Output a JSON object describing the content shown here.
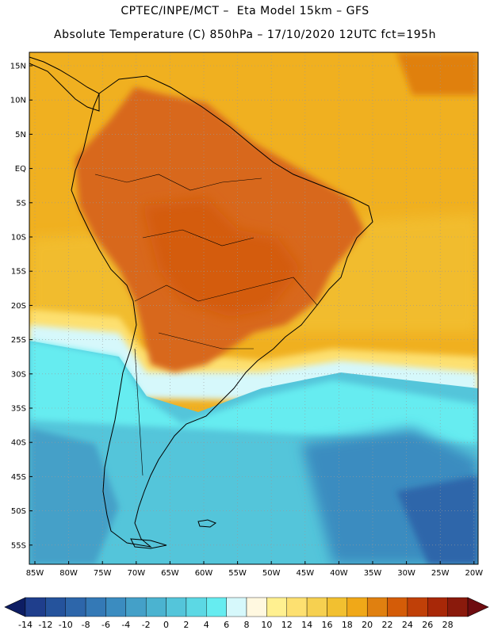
{
  "header": {
    "line1": "CPTEC/INPE/MCT –  Eta Model 15km – GFS",
    "line2": "Absolute Temperature (C) 850hPa – 17/10/2020 12UTC fct=195h"
  },
  "map": {
    "lat_labels": [
      "15N",
      "10N",
      "5N",
      "EQ",
      "5S",
      "10S",
      "15S",
      "20S",
      "25S",
      "30S",
      "35S",
      "40S",
      "45S",
      "50S",
      "55S"
    ],
    "lon_labels": [
      "85W",
      "80W",
      "75W",
      "70W",
      "65W",
      "60W",
      "55W",
      "50W",
      "45W",
      "40W",
      "35W",
      "30W",
      "25W",
      "20W"
    ],
    "colors": {
      "ocean_warm": "#f0b020",
      "land_hot": "#d8681a",
      "cold_sea": "#40c8e0",
      "deep_cold": "#3a8ec8",
      "coast": "#000000"
    }
  },
  "colorbar": {
    "labels": [
      "-14",
      "-12",
      "-10",
      "-8",
      "-6",
      "-4",
      "-2",
      "0",
      "2",
      "4",
      "6",
      "8",
      "10",
      "12",
      "14",
      "16",
      "18",
      "20",
      "22",
      "24",
      "26",
      "28"
    ],
    "colors": [
      "#1f3e8c",
      "#25539c",
      "#2d66aa",
      "#3479b6",
      "#3b8cc0",
      "#44a0c8",
      "#4bb3d0",
      "#54c5da",
      "#5cd8e4",
      "#66ecf0",
      "#d6f8fb",
      "#fff8e0",
      "#fff090",
      "#fde070",
      "#f6d050",
      "#f2c030",
      "#f0a818",
      "#e08010",
      "#d45c08",
      "#c04008",
      "#a82808",
      "#8a1a0c"
    ],
    "under_color": "#0d1d63",
    "over_color": "#6e0c10"
  }
}
